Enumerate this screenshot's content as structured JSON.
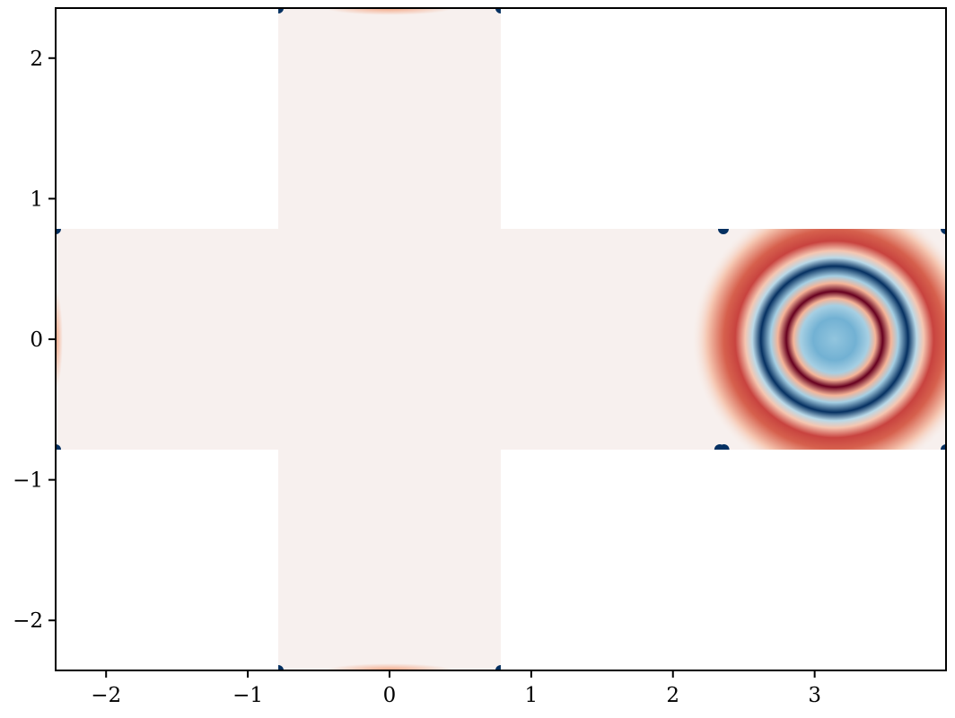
{
  "chart_data": {
    "type": "heatmap",
    "title": "",
    "xlabel": "",
    "ylabel": "",
    "xlim": [
      -2.356,
      3.927
    ],
    "ylim": [
      -2.356,
      2.356
    ],
    "grid": false,
    "colormap": "RdBu_r",
    "domain_shape": "cross",
    "domain_regions": [
      {
        "x": [
          -0.785,
          0.785
        ],
        "y": [
          -2.356,
          2.356
        ]
      },
      {
        "x": [
          -2.356,
          3.927
        ],
        "y": [
          -0.785,
          0.785
        ]
      }
    ],
    "field": {
      "background_value": 0.02,
      "ring_pattern": {
        "center": [
          3.14,
          0.0
        ],
        "rings": [
          {
            "r": 0.0,
            "value": -0.25
          },
          {
            "r": 0.15,
            "value": -0.35
          },
          {
            "r": 0.24,
            "value": -0.2
          },
          {
            "r": 0.29,
            "value": 0.2
          },
          {
            "r": 0.34,
            "value": 1.0
          },
          {
            "r": 0.4,
            "value": 0.2
          },
          {
            "r": 0.45,
            "value": -0.2
          },
          {
            "r": 0.52,
            "value": -1.0
          },
          {
            "r": 0.58,
            "value": -0.15
          },
          {
            "r": 0.63,
            "value": 0.15
          },
          {
            "r": 0.7,
            "value": 0.6
          },
          {
            "r": 0.78,
            "value": 0.5
          },
          {
            "r": 0.9,
            "value": 0.15
          },
          {
            "r": 1.02,
            "value": 0.0
          }
        ]
      },
      "edge_glows": [
        {
          "x": 0.0,
          "y": 2.356,
          "rx": 0.45,
          "ry": 0.05,
          "value": 0.25
        },
        {
          "x": 0.0,
          "y": -2.356,
          "rx": 0.45,
          "ry": 0.05,
          "value": 0.25
        },
        {
          "x": -2.356,
          "y": 0.0,
          "rx": 0.05,
          "ry": 0.35,
          "value": 0.25
        }
      ],
      "corner_spots": [
        {
          "x": -0.785,
          "y": 2.356
        },
        {
          "x": 0.785,
          "y": 2.356
        },
        {
          "x": -0.785,
          "y": -2.356
        },
        {
          "x": 0.785,
          "y": -2.356
        },
        {
          "x": -2.356,
          "y": 0.785
        },
        {
          "x": -2.356,
          "y": -0.785
        },
        {
          "x": 2.356,
          "y": 0.785
        },
        {
          "x": 2.36,
          "y": -0.785
        },
        {
          "x": 2.33,
          "y": -0.785
        },
        {
          "x": 3.927,
          "y": 0.785
        },
        {
          "x": 3.927,
          "y": -0.785
        }
      ],
      "corner_value": -1.0
    },
    "x_ticks": [
      {
        "value": -2,
        "label": "−2"
      },
      {
        "value": -1,
        "label": "−1"
      },
      {
        "value": 0,
        "label": "0"
      },
      {
        "value": 1,
        "label": "1"
      },
      {
        "value": 2,
        "label": "2"
      },
      {
        "value": 3,
        "label": "3"
      }
    ],
    "y_ticks": [
      {
        "value": -2,
        "label": "−2"
      },
      {
        "value": -1,
        "label": "−1"
      },
      {
        "value": 0,
        "label": "0"
      },
      {
        "value": 1,
        "label": "1"
      },
      {
        "value": 2,
        "label": "2"
      }
    ]
  }
}
